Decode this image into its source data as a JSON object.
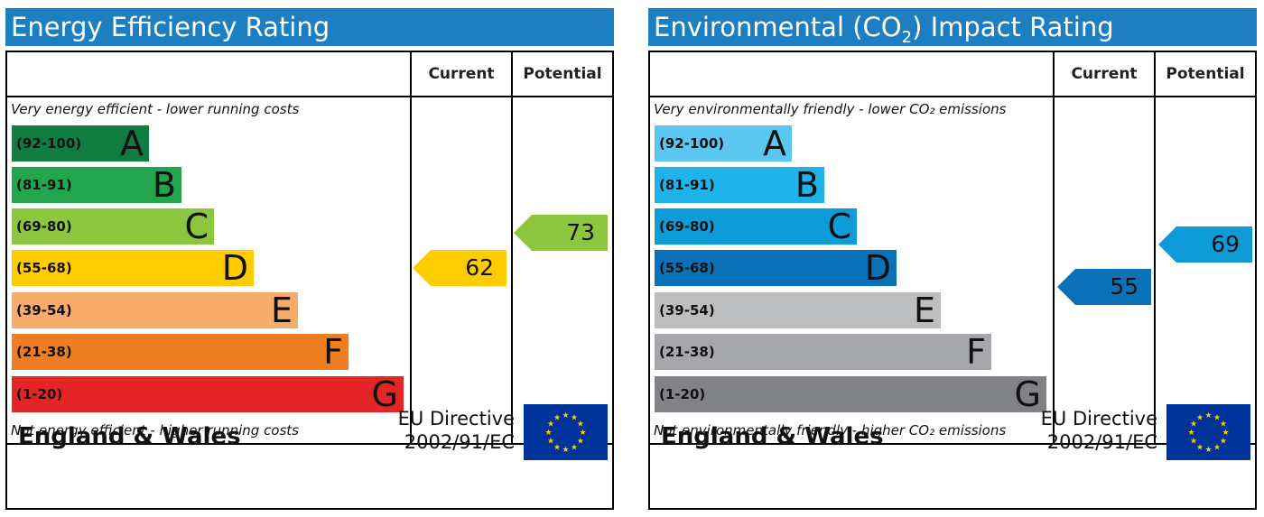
{
  "colors": {
    "header_bg": "#1d7fc2",
    "flag_bg": "#003399",
    "flag_stars": "#ffcc00"
  },
  "energy_efficiency": {
    "title": "Energy Efficiency Rating",
    "col_current": "Current",
    "col_potential": "Potential",
    "top_caption": "Very energy efficient - lower running costs",
    "bottom_caption": "Not energy efficient - higher running costs",
    "bands": [
      {
        "range": "(92-100)",
        "letter": "A",
        "color": "#107c41"
      },
      {
        "range": "(81-91)",
        "letter": "B",
        "color": "#21a64e"
      },
      {
        "range": "(69-80)",
        "letter": "C",
        "color": "#8cc63f"
      },
      {
        "range": "(55-68)",
        "letter": "D",
        "color": "#ffcc00"
      },
      {
        "range": "(39-54)",
        "letter": "E",
        "color": "#f7ac6c"
      },
      {
        "range": "(21-38)",
        "letter": "F",
        "color": "#ef7d22"
      },
      {
        "range": "(1-20)",
        "letter": "G",
        "color": "#e42526"
      }
    ],
    "current": {
      "value": "62",
      "color": "#ffcc00"
    },
    "potential": {
      "value": "73",
      "color": "#8cc63f"
    },
    "footer_region": "England & Wales",
    "footer_directive_line1": "EU Directive",
    "footer_directive_line2": "2002/91/EC"
  },
  "environmental_impact": {
    "title_prefix": "Environmental (CO",
    "title_sub": "2",
    "title_suffix": ") Impact Rating",
    "col_current": "Current",
    "col_potential": "Potential",
    "top_caption": "Very environmentally friendly - lower CO₂ emissions",
    "bottom_caption": "Not environmentally friendly - higher CO₂ emissions",
    "bands": [
      {
        "range": "(92-100)",
        "letter": "A",
        "color": "#5bc7f0"
      },
      {
        "range": "(81-91)",
        "letter": "B",
        "color": "#1fb3ea"
      },
      {
        "range": "(69-80)",
        "letter": "C",
        "color": "#0f9bd8"
      },
      {
        "range": "(55-68)",
        "letter": "D",
        "color": "#0b71b9"
      },
      {
        "range": "(39-54)",
        "letter": "E",
        "color": "#bcbec0"
      },
      {
        "range": "(21-38)",
        "letter": "F",
        "color": "#a5a7aa"
      },
      {
        "range": "(1-20)",
        "letter": "G",
        "color": "#808285"
      }
    ],
    "current": {
      "value": "55",
      "color": "#0b71b9"
    },
    "potential": {
      "value": "69",
      "color": "#0f9bd8"
    },
    "footer_region": "England & Wales",
    "footer_directive_line1": "EU Directive",
    "footer_directive_line2": "2002/91/EC"
  }
}
